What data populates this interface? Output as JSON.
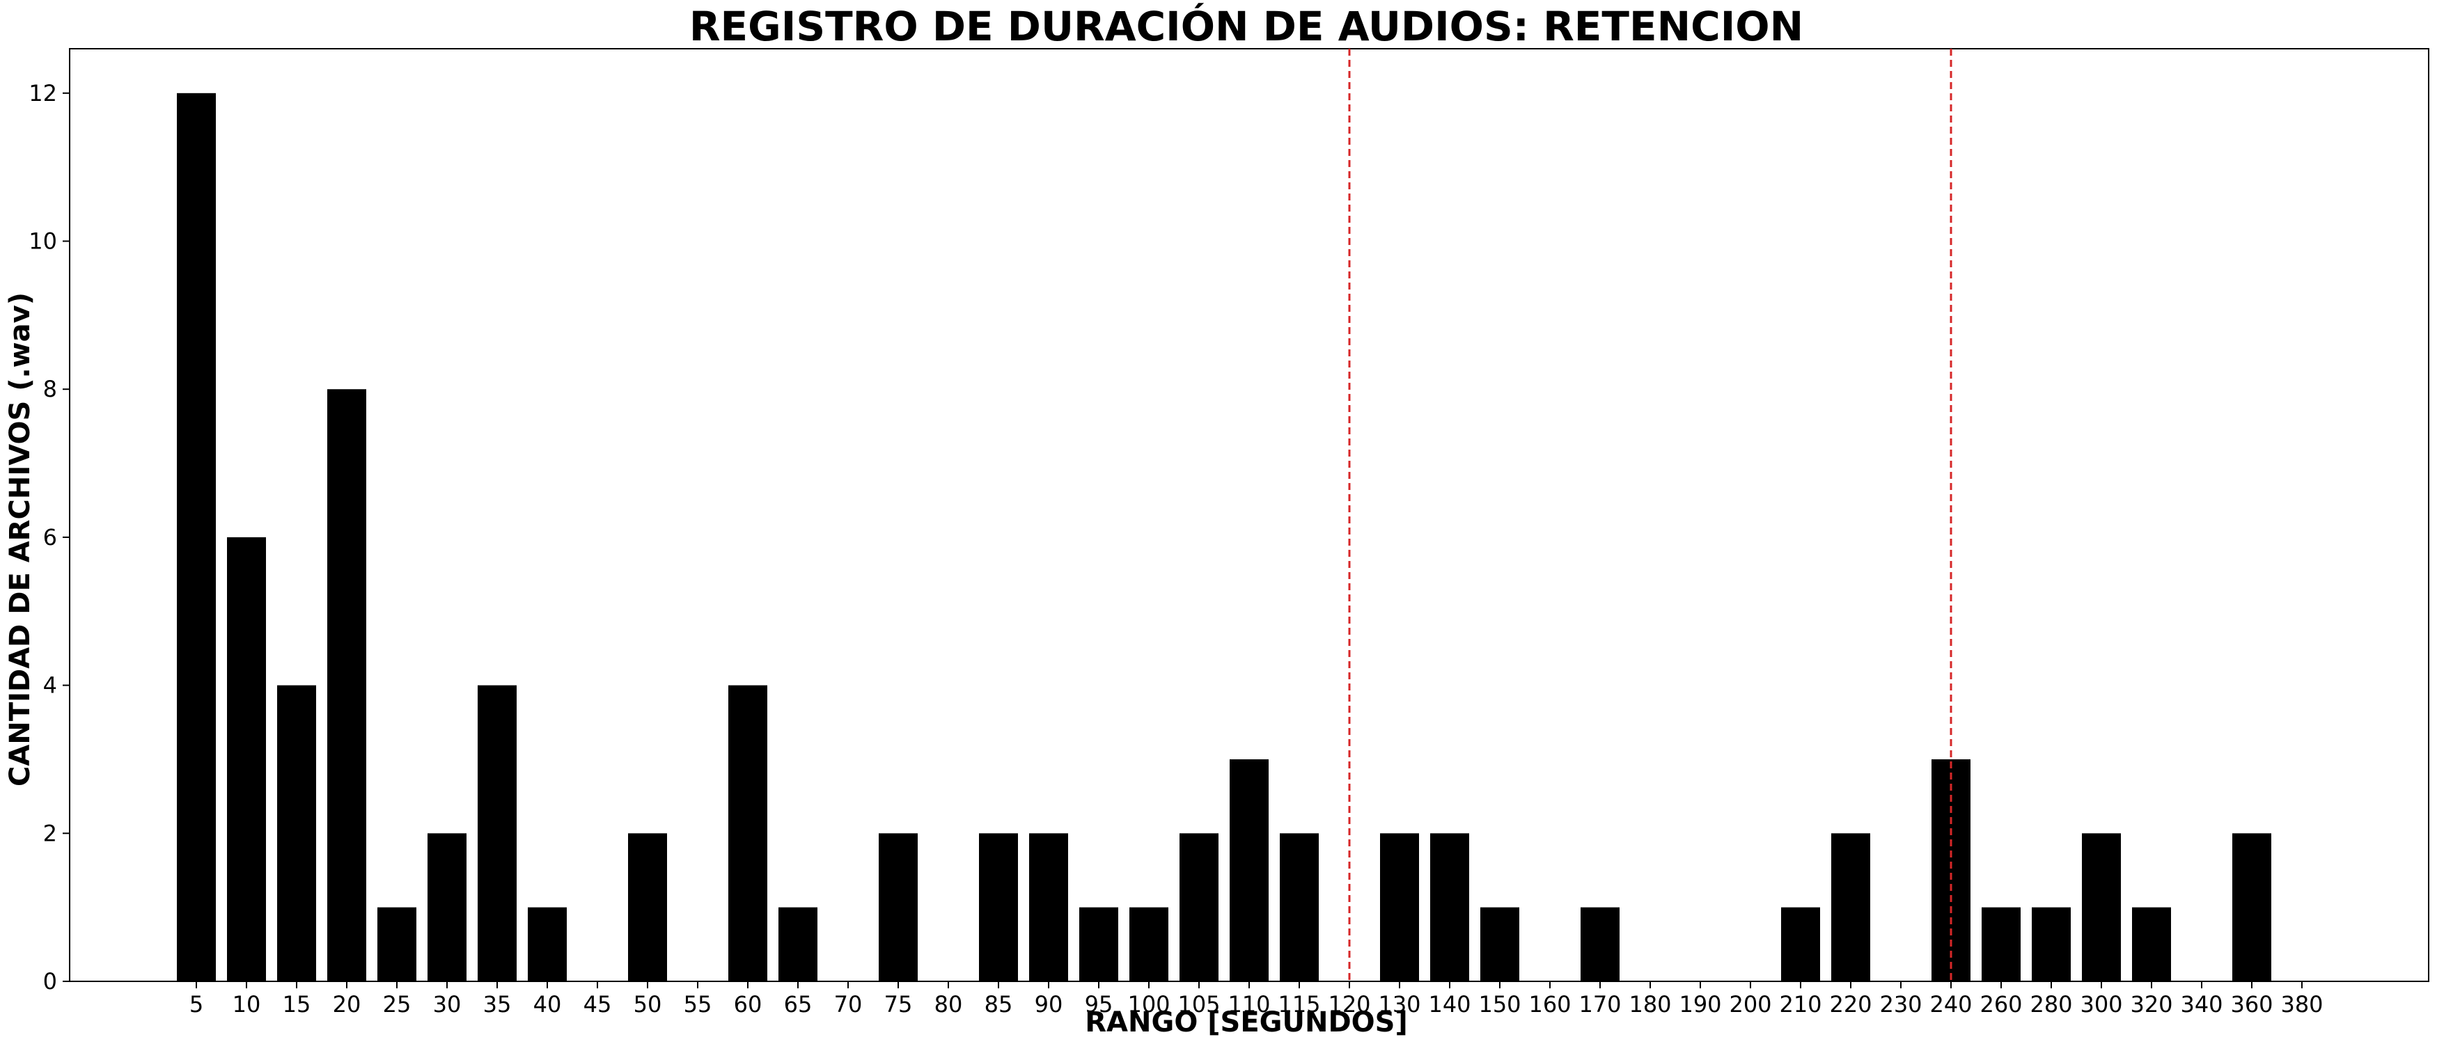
{
  "chart_data": {
    "type": "bar",
    "title": "REGISTRO DE DURACIÓN DE AUDIOS: RETENCION",
    "xlabel": "RANGO [SEGUNDOS]",
    "ylabel": "CANTIDAD DE ARCHIVOS (.wav)",
    "categories": [
      "5",
      "10",
      "15",
      "20",
      "25",
      "30",
      "35",
      "40",
      "45",
      "50",
      "55",
      "60",
      "65",
      "70",
      "75",
      "80",
      "85",
      "90",
      "95",
      "100",
      "105",
      "110",
      "115",
      "120",
      "130",
      "140",
      "150",
      "160",
      "170",
      "180",
      "190",
      "200",
      "210",
      "220",
      "230",
      "240",
      "260",
      "280",
      "300",
      "320",
      "340",
      "360",
      "380"
    ],
    "values": [
      12,
      6,
      4,
      8,
      1,
      2,
      4,
      1,
      0,
      2,
      0,
      4,
      1,
      0,
      2,
      0,
      2,
      2,
      1,
      1,
      2,
      3,
      2,
      0,
      2,
      2,
      1,
      0,
      1,
      0,
      0,
      0,
      1,
      2,
      0,
      3,
      1,
      1,
      2,
      1,
      0,
      2,
      0
    ],
    "ylim": [
      0,
      12.6
    ],
    "yticks": [
      0,
      2,
      4,
      6,
      8,
      10,
      12
    ],
    "reference_lines": [
      "120",
      "240"
    ],
    "bar_color": "#000000",
    "reference_line_color": "#d62728",
    "grid": false,
    "legend": "none"
  }
}
